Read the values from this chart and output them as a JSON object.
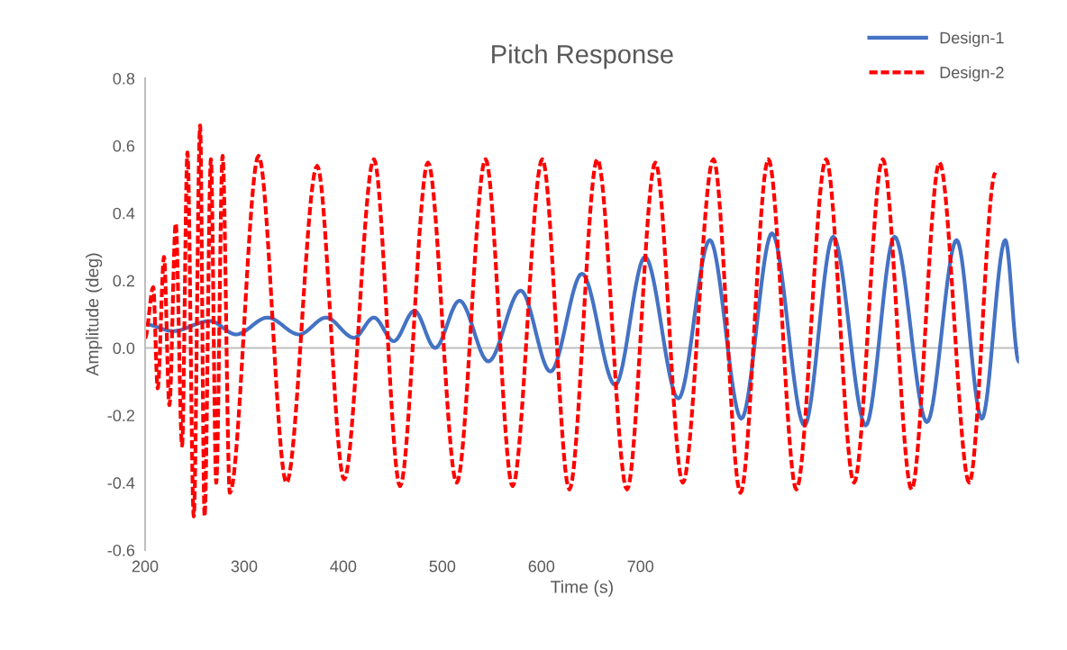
{
  "chart_data": {
    "type": "line",
    "title": "Pitch Response",
    "xlabel": "Time (s)",
    "ylabel": "Amplitude (deg)",
    "xlim": [
      200,
      1082
    ],
    "xticks": [
      200,
      300,
      400,
      500,
      600,
      700
    ],
    "ylim": [
      -0.6,
      0.8
    ],
    "yticks": [
      -0.6,
      -0.4,
      -0.2,
      {
        "value": 0,
        "label": "0.0"
      },
      0.2,
      0.4,
      0.6,
      0.8
    ],
    "grid": false,
    "ref_lines": [
      {
        "axis": "y",
        "value": 0,
        "color": "#bfbfbf"
      }
    ],
    "legend": "top right",
    "marker": "none",
    "series": [
      {
        "name": "Design-1",
        "color": "#4472c4",
        "line_style": "solid",
        "x": [
          200,
          228.2,
          265.5,
          291.8,
          323.6,
          355.5,
          382.7,
          410.9,
          430.9,
          450.9,
          471.8,
          492.7,
          517.3,
          546.4,
          579.1,
          609.1,
          640.9,
          674.5,
          704.5,
          738.2,
          770.0,
          801.8,
          832.7,
          865.5,
          894.5,
          927.3,
          956.4,
          989.1,
          1019.1,
          1044.5,
          1068.2,
          1081.8
        ],
        "values": [
          0.07,
          0.05,
          0.08,
          0.04,
          0.09,
          0.04,
          0.09,
          0.03,
          0.09,
          0.02,
          0.11,
          0.0,
          0.14,
          -0.04,
          0.17,
          -0.07,
          0.22,
          -0.11,
          0.27,
          -0.15,
          0.32,
          -0.21,
          0.34,
          -0.23,
          0.33,
          -0.23,
          0.33,
          -0.22,
          0.32,
          -0.21,
          0.32,
          -0.04
        ]
      },
      {
        "name": "Design-2",
        "color": "#ff0000",
        "line_style": "dashed",
        "x": [
          200,
          208.2,
          212.7,
          219.1,
          224.5,
          230.9,
          237.3,
          242.7,
          249.1,
          255.5,
          260.0,
          266.4,
          271.8,
          278.2,
          285.5,
          314.5,
          342.7,
          373.6,
          400.9,
          430.9,
          457.3,
          485.5,
          514.5,
          543.6,
          570.9,
          600.9,
          628.2,
          656.4,
          686.4,
          715.0,
          742.7,
          773.6,
          800.9,
          829.1,
          857.3,
          887.3,
          915.5,
          944.5,
          973.6,
          1001.8,
          1031.8,
          1058.2
        ],
        "values": [
          0.03,
          0.18,
          -0.12,
          0.27,
          -0.17,
          0.37,
          -0.29,
          0.58,
          -0.5,
          0.66,
          -0.5,
          0.56,
          -0.4,
          0.57,
          -0.43,
          0.57,
          -0.4,
          0.54,
          -0.39,
          0.56,
          -0.41,
          0.55,
          -0.4,
          0.56,
          -0.41,
          0.56,
          -0.42,
          0.56,
          -0.42,
          0.55,
          -0.4,
          0.56,
          -0.43,
          0.56,
          -0.42,
          0.56,
          -0.4,
          0.56,
          -0.42,
          0.55,
          -0.4,
          0.52
        ]
      }
    ]
  }
}
